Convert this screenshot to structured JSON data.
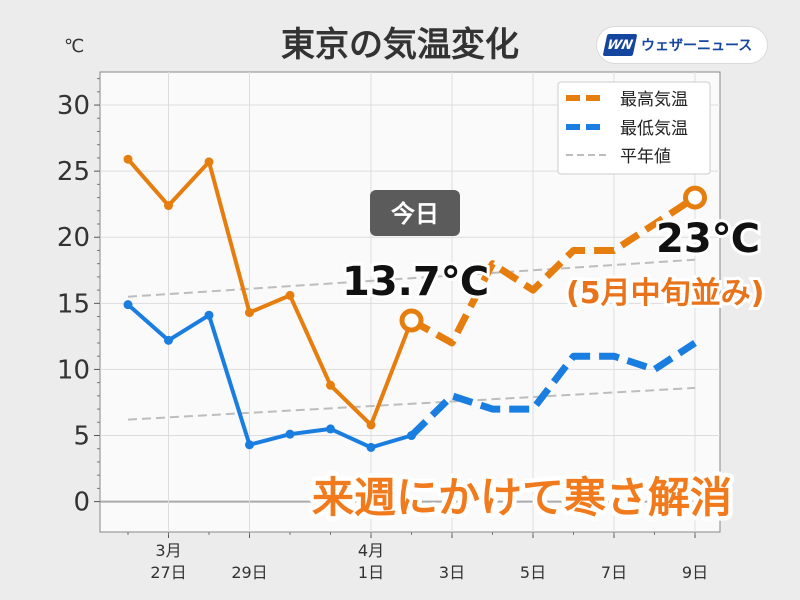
{
  "title": "東京の気温変化",
  "unit_label": "℃",
  "logo": {
    "mark": "WN",
    "brand": "ウェザーニュース"
  },
  "legend": {
    "high": "最高気温",
    "low": "最低気温",
    "normal": "平年値"
  },
  "today_badge": "今日",
  "annotations": {
    "today_high": "13.7℃",
    "future_high": "23℃",
    "future_note": "(5月中旬並み)"
  },
  "banner": "来週にかけて寒さ解消",
  "colors": {
    "high": "#e67e0f",
    "low": "#1a7de0",
    "normal": "#bdbdbd",
    "banner": "#f07a1c",
    "note": "#e8731a"
  },
  "chart_data": {
    "type": "line",
    "x": [
      "3/26",
      "3/27",
      "3/28",
      "3/29",
      "3/30",
      "3/31",
      "4/1",
      "4/2",
      "4/3",
      "4/4",
      "4/5",
      "4/6",
      "4/7",
      "4/8",
      "4/9"
    ],
    "x_tick_labels": [
      {
        "x": "3/27",
        "top": "3月",
        "bottom": "27日"
      },
      {
        "x": "3/29",
        "top": "",
        "bottom": "29日"
      },
      {
        "x": "4/1",
        "top": "4月",
        "bottom": "1日"
      },
      {
        "x": "4/3",
        "top": "",
        "bottom": "3日"
      },
      {
        "x": "4/5",
        "top": "",
        "bottom": "5日"
      },
      {
        "x": "4/7",
        "top": "",
        "bottom": "7日"
      },
      {
        "x": "4/9",
        "top": "",
        "bottom": "9日"
      }
    ],
    "y_ticks": [
      "0",
      "5",
      "10",
      "15",
      "20",
      "25",
      "30"
    ],
    "ylim": [
      -2.3,
      32.5
    ],
    "today": "4/2",
    "series": [
      {
        "name": "最高気温",
        "observed": [
          25.9,
          22.4,
          25.7,
          14.3,
          15.6,
          8.8,
          5.8,
          13.7
        ],
        "forecast": [
          13.7,
          12.0,
          18.0,
          16.0,
          19.0,
          19.0,
          21.0,
          23.0
        ]
      },
      {
        "name": "最低気温",
        "observed": [
          14.9,
          12.2,
          14.1,
          4.3,
          5.1,
          5.5,
          4.1,
          5.0
        ],
        "forecast": [
          5.0,
          8.0,
          7.0,
          7.0,
          11.0,
          11.0,
          10.0,
          12.0
        ]
      },
      {
        "name": "平年値",
        "normal_high": [
          15.5,
          18.3
        ],
        "normal_low": [
          6.2,
          8.6
        ]
      }
    ],
    "grid": true,
    "legend_position": "top-right"
  }
}
